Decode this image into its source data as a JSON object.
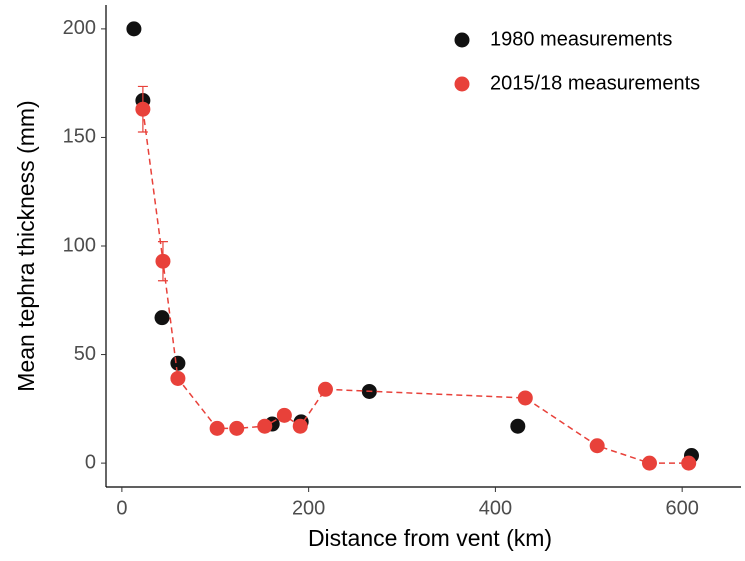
{
  "chart_data": {
    "type": "scatter",
    "x_label": "Distance from vent (km)",
    "y_label": "Mean tephra thickness (mm)",
    "xlim": [
      -17,
      663
    ],
    "ylim": [
      -11,
      211
    ],
    "xticks": [
      0,
      200,
      400,
      600
    ],
    "yticks": [
      0,
      50,
      100,
      150,
      200
    ],
    "grid": false,
    "legend": "top-right",
    "series": [
      {
        "name": "1980 measurements",
        "color": "#111111",
        "line": false,
        "x": [
          12.9,
          22.5,
          43,
          60,
          161,
          192,
          265,
          424,
          610
        ],
        "values": [
          200,
          167,
          67,
          46,
          18,
          19,
          33,
          17,
          3.5
        ]
      },
      {
        "name": "2015/18 measurements",
        "color": "#e8413a",
        "line": true,
        "x": [
          22.5,
          44,
          60,
          102,
          123,
          153,
          174,
          191,
          218,
          432,
          509,
          565,
          607
        ],
        "values": [
          163,
          93,
          39,
          16,
          16,
          17,
          22,
          17,
          34,
          30,
          8,
          0,
          0
        ],
        "errors": [
          10.5,
          9,
          1,
          1,
          1,
          1,
          2,
          1,
          1,
          1,
          1,
          0.5,
          0.5
        ]
      }
    ]
  }
}
